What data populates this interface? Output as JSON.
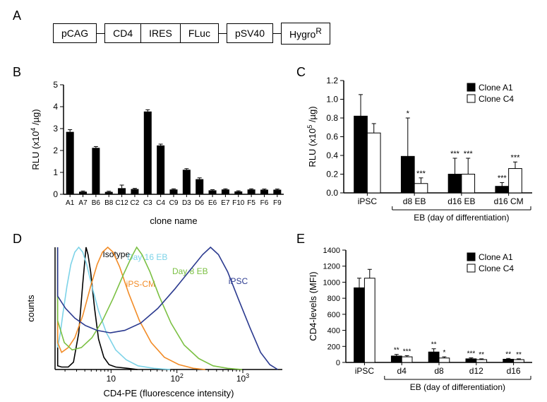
{
  "panelLabels": {
    "A": "A",
    "B": "B",
    "C": "C",
    "D": "D",
    "E": "E"
  },
  "construct": [
    "pCAG",
    "CD4",
    "IRES",
    "FLuc",
    "pSV40",
    "Hygro"
  ],
  "construct_sup": "R",
  "panelB": {
    "ylabel": "RLU (x10",
    "ylabel_sup": "4",
    "ylabel_tail": " /µg)",
    "xlabel": "clone name",
    "ymax": 5,
    "ytick_step": 1,
    "categories": [
      "A1",
      "A7",
      "B6",
      "B8",
      "C12",
      "C2",
      "C3",
      "C4",
      "C9",
      "D3",
      "D6",
      "E6",
      "E7",
      "F10",
      "F5",
      "F6",
      "F9"
    ],
    "values": [
      2.85,
      0.12,
      2.12,
      0.11,
      0.28,
      0.24,
      3.78,
      2.23,
      0.22,
      1.12,
      0.69,
      0.18,
      0.22,
      0.13,
      0.22,
      0.21,
      0.21
    ],
    "errs": [
      0.1,
      0.03,
      0.06,
      0.03,
      0.14,
      0.03,
      0.08,
      0.06,
      0.03,
      0.05,
      0.06,
      0.03,
      0.03,
      0.03,
      0.03,
      0.03,
      0.03
    ],
    "bar_color": "#000000",
    "axis_color": "#000000"
  },
  "panelC": {
    "ylabel": "RLU (x10",
    "ylabel_sup": "5",
    "ylabel_tail": " /µg)",
    "xlabel_top": "EB (day of differentiation)",
    "ymax": 1.2,
    "ytick_step": 0.2,
    "groups": [
      "iPSC",
      "d8 EB",
      "d16 EB",
      "d16 CM"
    ],
    "series": [
      {
        "name": "Clone A1",
        "color": "#000000",
        "values": [
          0.82,
          0.39,
          0.2,
          0.07
        ],
        "errs": [
          0.23,
          0.41,
          0.17,
          0.04
        ],
        "stars": [
          "",
          "*",
          "***",
          "***"
        ]
      },
      {
        "name": "Clone C4",
        "color": "#ffffff",
        "values": [
          0.64,
          0.1,
          0.2,
          0.26
        ],
        "errs": [
          0.1,
          0.06,
          0.17,
          0.07
        ],
        "stars": [
          "",
          "***",
          "***",
          "***"
        ]
      }
    ],
    "axis_color": "#000000"
  },
  "panelD": {
    "xlabel": "CD4-PE (fluorescence intensity)",
    "ylabel": "counts",
    "axis_color": "#000000",
    "tick_labels": [
      "10",
      "10",
      "10"
    ],
    "tick_sups": [
      "",
      "2",
      "3"
    ],
    "curves": [
      {
        "name": "Isotype",
        "color": "#000000",
        "label_x": 93,
        "label_y": 14,
        "path": [
          [
            4,
            100
          ],
          [
            4,
            3
          ],
          [
            10,
            2
          ],
          [
            20,
            2
          ],
          [
            28,
            6
          ],
          [
            36,
            30
          ],
          [
            42,
            70
          ],
          [
            47,
            100
          ],
          [
            50,
            94
          ],
          [
            54,
            80
          ],
          [
            60,
            50
          ],
          [
            66,
            25
          ],
          [
            74,
            10
          ],
          [
            82,
            4
          ],
          [
            92,
            2
          ],
          [
            110,
            1
          ],
          [
            125,
            0
          ]
        ]
      },
      {
        "name": "Day 16 EB",
        "color": "#7dd3e8",
        "label_x": 140,
        "label_y": 18,
        "path": [
          [
            4,
            100
          ],
          [
            4,
            18
          ],
          [
            8,
            30
          ],
          [
            12,
            46
          ],
          [
            18,
            68
          ],
          [
            24,
            86
          ],
          [
            30,
            96
          ],
          [
            36,
            100
          ],
          [
            42,
            96
          ],
          [
            48,
            86
          ],
          [
            56,
            68
          ],
          [
            66,
            48
          ],
          [
            78,
            30
          ],
          [
            92,
            16
          ],
          [
            108,
            8
          ],
          [
            126,
            3
          ],
          [
            150,
            1
          ],
          [
            175,
            0
          ]
        ]
      },
      {
        "name": "iPS-CM",
        "color": "#f28c28",
        "label_x": 130,
        "label_y": 56,
        "path": [
          [
            4,
            100
          ],
          [
            4,
            22
          ],
          [
            10,
            14
          ],
          [
            20,
            18
          ],
          [
            30,
            26
          ],
          [
            42,
            44
          ],
          [
            54,
            68
          ],
          [
            64,
            86
          ],
          [
            72,
            96
          ],
          [
            80,
            100
          ],
          [
            88,
            96
          ],
          [
            98,
            84
          ],
          [
            112,
            62
          ],
          [
            128,
            40
          ],
          [
            146,
            22
          ],
          [
            166,
            10
          ],
          [
            188,
            4
          ],
          [
            210,
            1
          ],
          [
            228,
            0
          ]
        ]
      },
      {
        "name": "Day 8 EB",
        "color": "#7bc043",
        "label_x": 205,
        "label_y": 38,
        "path": [
          [
            4,
            100
          ],
          [
            4,
            40
          ],
          [
            14,
            22
          ],
          [
            26,
            16
          ],
          [
            40,
            18
          ],
          [
            56,
            26
          ],
          [
            72,
            40
          ],
          [
            88,
            58
          ],
          [
            104,
            78
          ],
          [
            116,
            92
          ],
          [
            124,
            100
          ],
          [
            132,
            94
          ],
          [
            144,
            80
          ],
          [
            158,
            60
          ],
          [
            176,
            38
          ],
          [
            196,
            20
          ],
          [
            218,
            9
          ],
          [
            240,
            3
          ],
          [
            262,
            1
          ],
          [
            284,
            0
          ]
        ]
      },
      {
        "name": "iPSC",
        "color": "#2b3a8f",
        "label_x": 278,
        "label_y": 52,
        "path": [
          [
            4,
            100
          ],
          [
            4,
            60
          ],
          [
            16,
            50
          ],
          [
            30,
            42
          ],
          [
            46,
            36
          ],
          [
            64,
            32
          ],
          [
            84,
            30
          ],
          [
            106,
            32
          ],
          [
            130,
            38
          ],
          [
            156,
            50
          ],
          [
            182,
            66
          ],
          [
            206,
            82
          ],
          [
            224,
            94
          ],
          [
            236,
            100
          ],
          [
            248,
            94
          ],
          [
            262,
            80
          ],
          [
            278,
            58
          ],
          [
            296,
            34
          ],
          [
            312,
            14
          ],
          [
            326,
            4
          ],
          [
            338,
            0
          ]
        ]
      }
    ]
  },
  "panelE": {
    "ylabel": "CD4-levels (MFI)",
    "xlabel_top": "EB (day of differentiation)",
    "ymax": 1400,
    "yticks": [
      0,
      200,
      400,
      600,
      800,
      1000,
      1200,
      1400
    ],
    "groups": [
      "iPSC",
      "d4",
      "d8",
      "d12",
      "d16"
    ],
    "series": [
      {
        "name": "Clone A1",
        "color": "#000000",
        "values": [
          930,
          80,
          130,
          45,
          40
        ],
        "errs": [
          120,
          20,
          40,
          12,
          10
        ],
        "stars": [
          "",
          "**",
          "**",
          "***",
          "**"
        ]
      },
      {
        "name": "Clone C4",
        "color": "#ffffff",
        "values": [
          1050,
          70,
          55,
          35,
          35
        ],
        "errs": [
          110,
          15,
          15,
          10,
          10
        ],
        "stars": [
          "",
          "***",
          "*",
          "**",
          "**"
        ]
      }
    ],
    "axis_color": "#000000"
  },
  "style": {
    "label_fontsize": 13,
    "tick_fontsize": 12
  }
}
